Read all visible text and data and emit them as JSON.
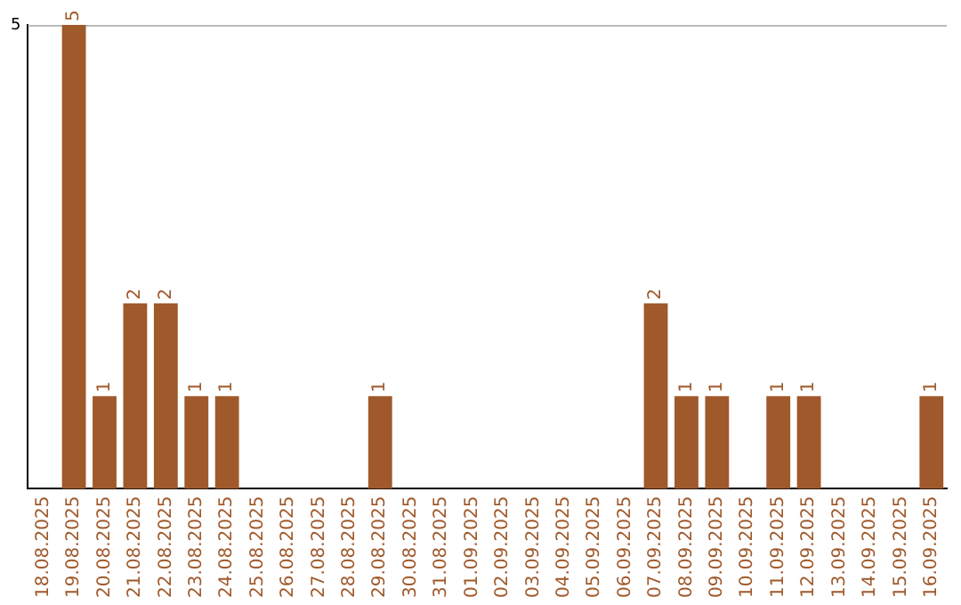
{
  "chart_data": {
    "type": "bar",
    "categories": [
      "18.08.2025",
      "19.08.2025",
      "20.08.2025",
      "21.08.2025",
      "22.08.2025",
      "23.08.2025",
      "24.08.2025",
      "25.08.2025",
      "26.08.2025",
      "27.08.2025",
      "28.08.2025",
      "29.08.2025",
      "30.08.2025",
      "31.08.2025",
      "01.09.2025",
      "02.09.2025",
      "03.09.2025",
      "04.09.2025",
      "05.09.2025",
      "06.09.2025",
      "07.09.2025",
      "08.09.2025",
      "09.09.2025",
      "10.09.2025",
      "11.09.2025",
      "12.09.2025",
      "13.09.2025",
      "14.09.2025",
      "15.09.2025",
      "16.09.2025"
    ],
    "values": [
      0,
      5,
      1,
      2,
      2,
      1,
      1,
      0,
      0,
      0,
      0,
      1,
      0,
      0,
      0,
      0,
      0,
      0,
      0,
      0,
      2,
      1,
      1,
      0,
      1,
      1,
      0,
      0,
      0,
      1
    ],
    "value_labels": [
      null,
      "5",
      "1",
      "2",
      "2",
      "1",
      "1",
      null,
      null,
      null,
      null,
      "1",
      null,
      null,
      null,
      null,
      null,
      null,
      null,
      null,
      "2",
      "1",
      "1",
      null,
      "1",
      "1",
      null,
      null,
      null,
      "1"
    ],
    "color": "#a0592b",
    "ylim": [
      0,
      5
    ],
    "yticks": [
      5
    ],
    "legend": false
  }
}
